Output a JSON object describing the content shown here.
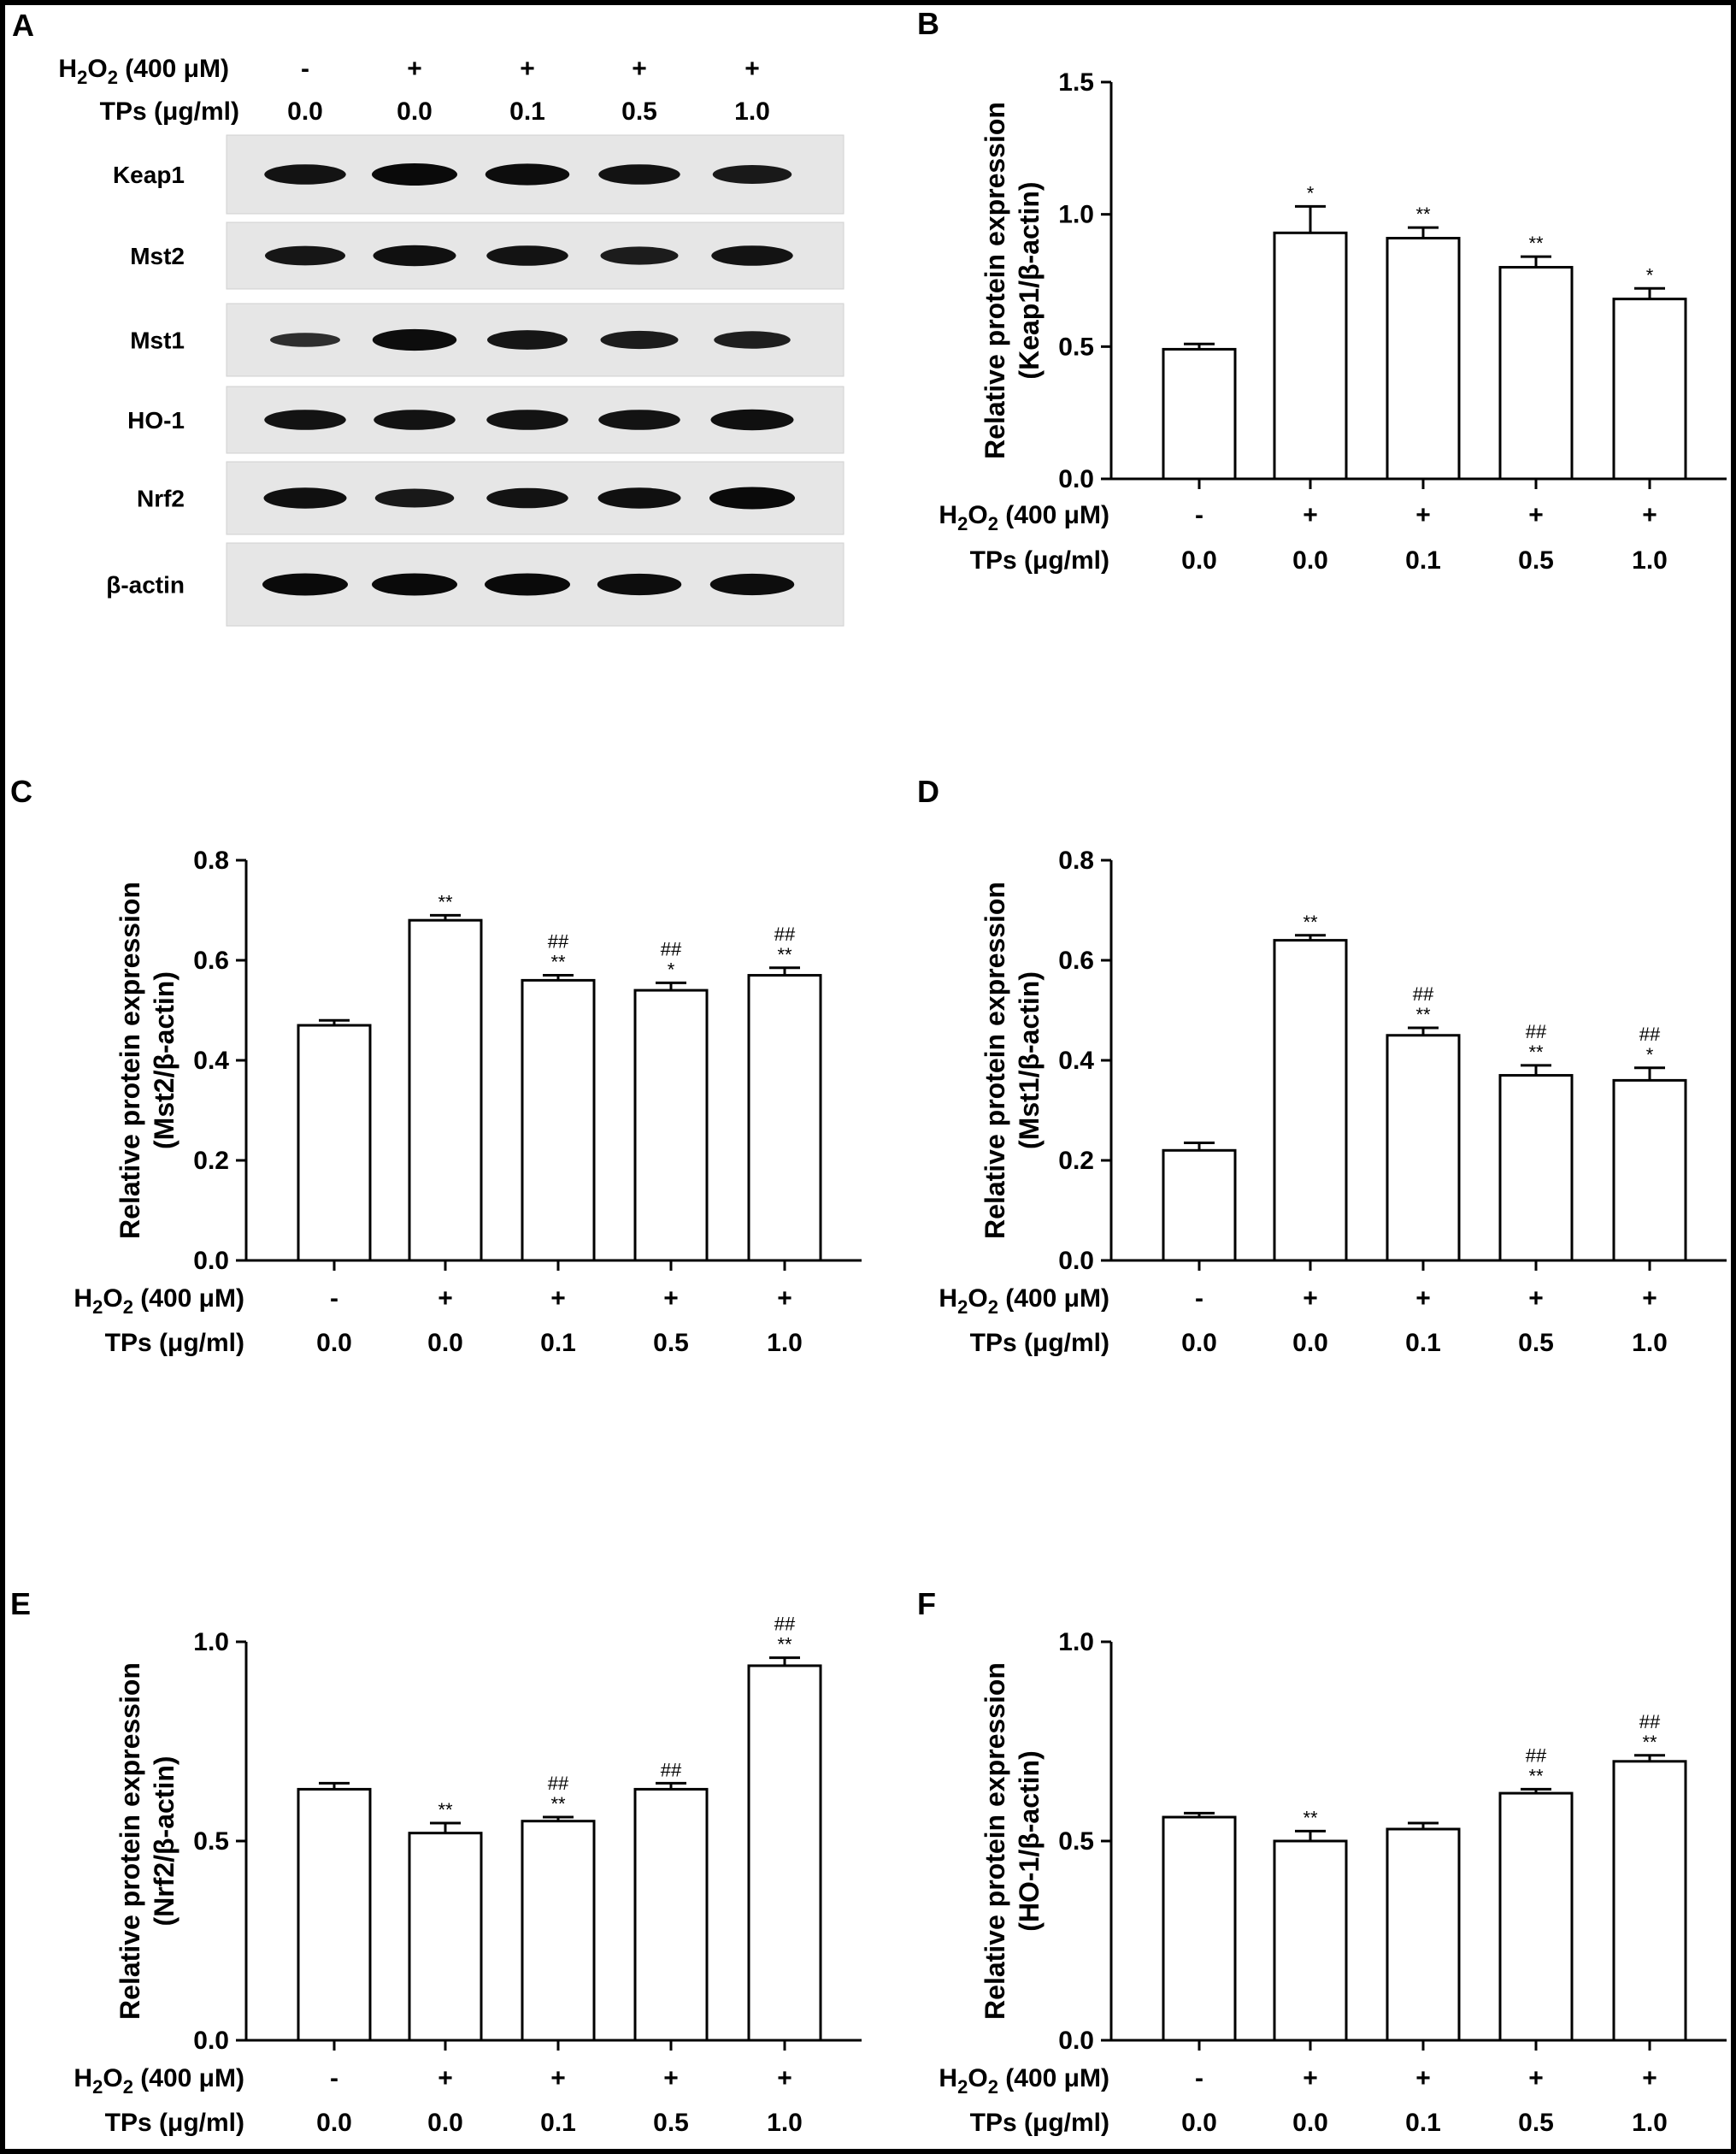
{
  "conditions": {
    "h2o2_label_main": "H",
    "h2o2_label_sub1": "2",
    "h2o2_label_mid": "O",
    "h2o2_label_sub2": "2",
    "h2o2_label_tail": " (400 μM)",
    "h2o2_values": [
      "-",
      "+",
      "+",
      "+",
      "+"
    ],
    "tps_label": "TPs (μg/ml)",
    "tps_values": [
      "0.0",
      "0.0",
      "0.1",
      "0.5",
      "1.0"
    ]
  },
  "panel_a": {
    "letter": "A",
    "blots": [
      {
        "name": "Keap1",
        "intensity": [
          0.85,
          1.0,
          0.95,
          0.85,
          0.75
        ]
      },
      {
        "name": "Mst2",
        "intensity": [
          0.8,
          0.9,
          0.85,
          0.7,
          0.85
        ]
      },
      {
        "name": "Mst1",
        "intensity": [
          0.4,
          0.95,
          0.8,
          0.7,
          0.65
        ]
      },
      {
        "name": "HO-1",
        "intensity": [
          0.85,
          0.85,
          0.85,
          0.85,
          0.9
        ]
      },
      {
        "name": "Nrf2",
        "intensity": [
          0.9,
          0.75,
          0.85,
          0.9,
          1.0
        ]
      },
      {
        "name": "β-actin",
        "intensity": [
          1.0,
          1.0,
          1.0,
          0.95,
          0.95
        ]
      }
    ]
  },
  "chart_data": [
    {
      "panel": "B",
      "type": "bar",
      "ylabel_line1": "Relative protein expression",
      "ylabel_line2": "(Keap1/β-actin)",
      "ylim": [
        0,
        1.5
      ],
      "yticks": [
        "0.0",
        "0.5",
        "1.0",
        "1.5"
      ],
      "ytick_values": [
        0,
        0.5,
        1.0,
        1.5
      ],
      "values": [
        0.49,
        0.93,
        0.91,
        0.8,
        0.68
      ],
      "errors": [
        0.02,
        0.1,
        0.04,
        0.04,
        0.04
      ],
      "annotations": [
        [],
        [
          "*"
        ],
        [
          "**"
        ],
        [
          "**"
        ],
        [
          "*"
        ]
      ]
    },
    {
      "panel": "C",
      "type": "bar",
      "ylabel_line1": "Relative protein expression",
      "ylabel_line2": "(Mst2/β-actin)",
      "ylim": [
        0,
        0.8
      ],
      "yticks": [
        "0.0",
        "0.2",
        "0.4",
        "0.6",
        "0.8"
      ],
      "ytick_values": [
        0,
        0.2,
        0.4,
        0.6,
        0.8
      ],
      "values": [
        0.47,
        0.68,
        0.56,
        0.54,
        0.57
      ],
      "errors": [
        0.01,
        0.01,
        0.01,
        0.015,
        0.015
      ],
      "annotations": [
        [],
        [
          "**"
        ],
        [
          "##",
          "**"
        ],
        [
          "##",
          "*"
        ],
        [
          "##",
          "**"
        ]
      ]
    },
    {
      "panel": "D",
      "type": "bar",
      "ylabel_line1": "Relative protein expression",
      "ylabel_line2": "(Mst1/β-actin)",
      "ylim": [
        0,
        0.8
      ],
      "yticks": [
        "0.0",
        "0.2",
        "0.4",
        "0.6",
        "0.8"
      ],
      "ytick_values": [
        0,
        0.2,
        0.4,
        0.6,
        0.8
      ],
      "values": [
        0.22,
        0.64,
        0.45,
        0.37,
        0.36
      ],
      "errors": [
        0.015,
        0.01,
        0.015,
        0.02,
        0.025
      ],
      "annotations": [
        [],
        [
          "**"
        ],
        [
          "##",
          "**"
        ],
        [
          "##",
          "**"
        ],
        [
          "##",
          "*"
        ]
      ]
    },
    {
      "panel": "E",
      "type": "bar",
      "ylabel_line1": "Relative protein expression",
      "ylabel_line2": "(Nrf2/β-actin)",
      "ylim": [
        0,
        1.0
      ],
      "yticks": [
        "0.0",
        "0.5",
        "1.0"
      ],
      "ytick_values": [
        0,
        0.5,
        1.0
      ],
      "values": [
        0.63,
        0.52,
        0.55,
        0.63,
        0.94
      ],
      "errors": [
        0.015,
        0.025,
        0.01,
        0.015,
        0.02
      ],
      "annotations": [
        [],
        [
          "**"
        ],
        [
          "##",
          "**"
        ],
        [
          "##"
        ],
        [
          "##",
          "**"
        ]
      ]
    },
    {
      "panel": "F",
      "type": "bar",
      "ylabel_line1": "Relative protein expression",
      "ylabel_line2": "(HO-1/β-actin)",
      "ylim": [
        0,
        1.0
      ],
      "yticks": [
        "0.0",
        "0.5",
        "1.0"
      ],
      "ytick_values": [
        0,
        0.5,
        1.0
      ],
      "values": [
        0.56,
        0.5,
        0.53,
        0.62,
        0.7
      ],
      "errors": [
        0.01,
        0.025,
        0.015,
        0.01,
        0.015
      ],
      "annotations": [
        [],
        [
          "**"
        ],
        [],
        [
          "##",
          "**"
        ],
        [
          "##",
          "**"
        ]
      ]
    }
  ]
}
